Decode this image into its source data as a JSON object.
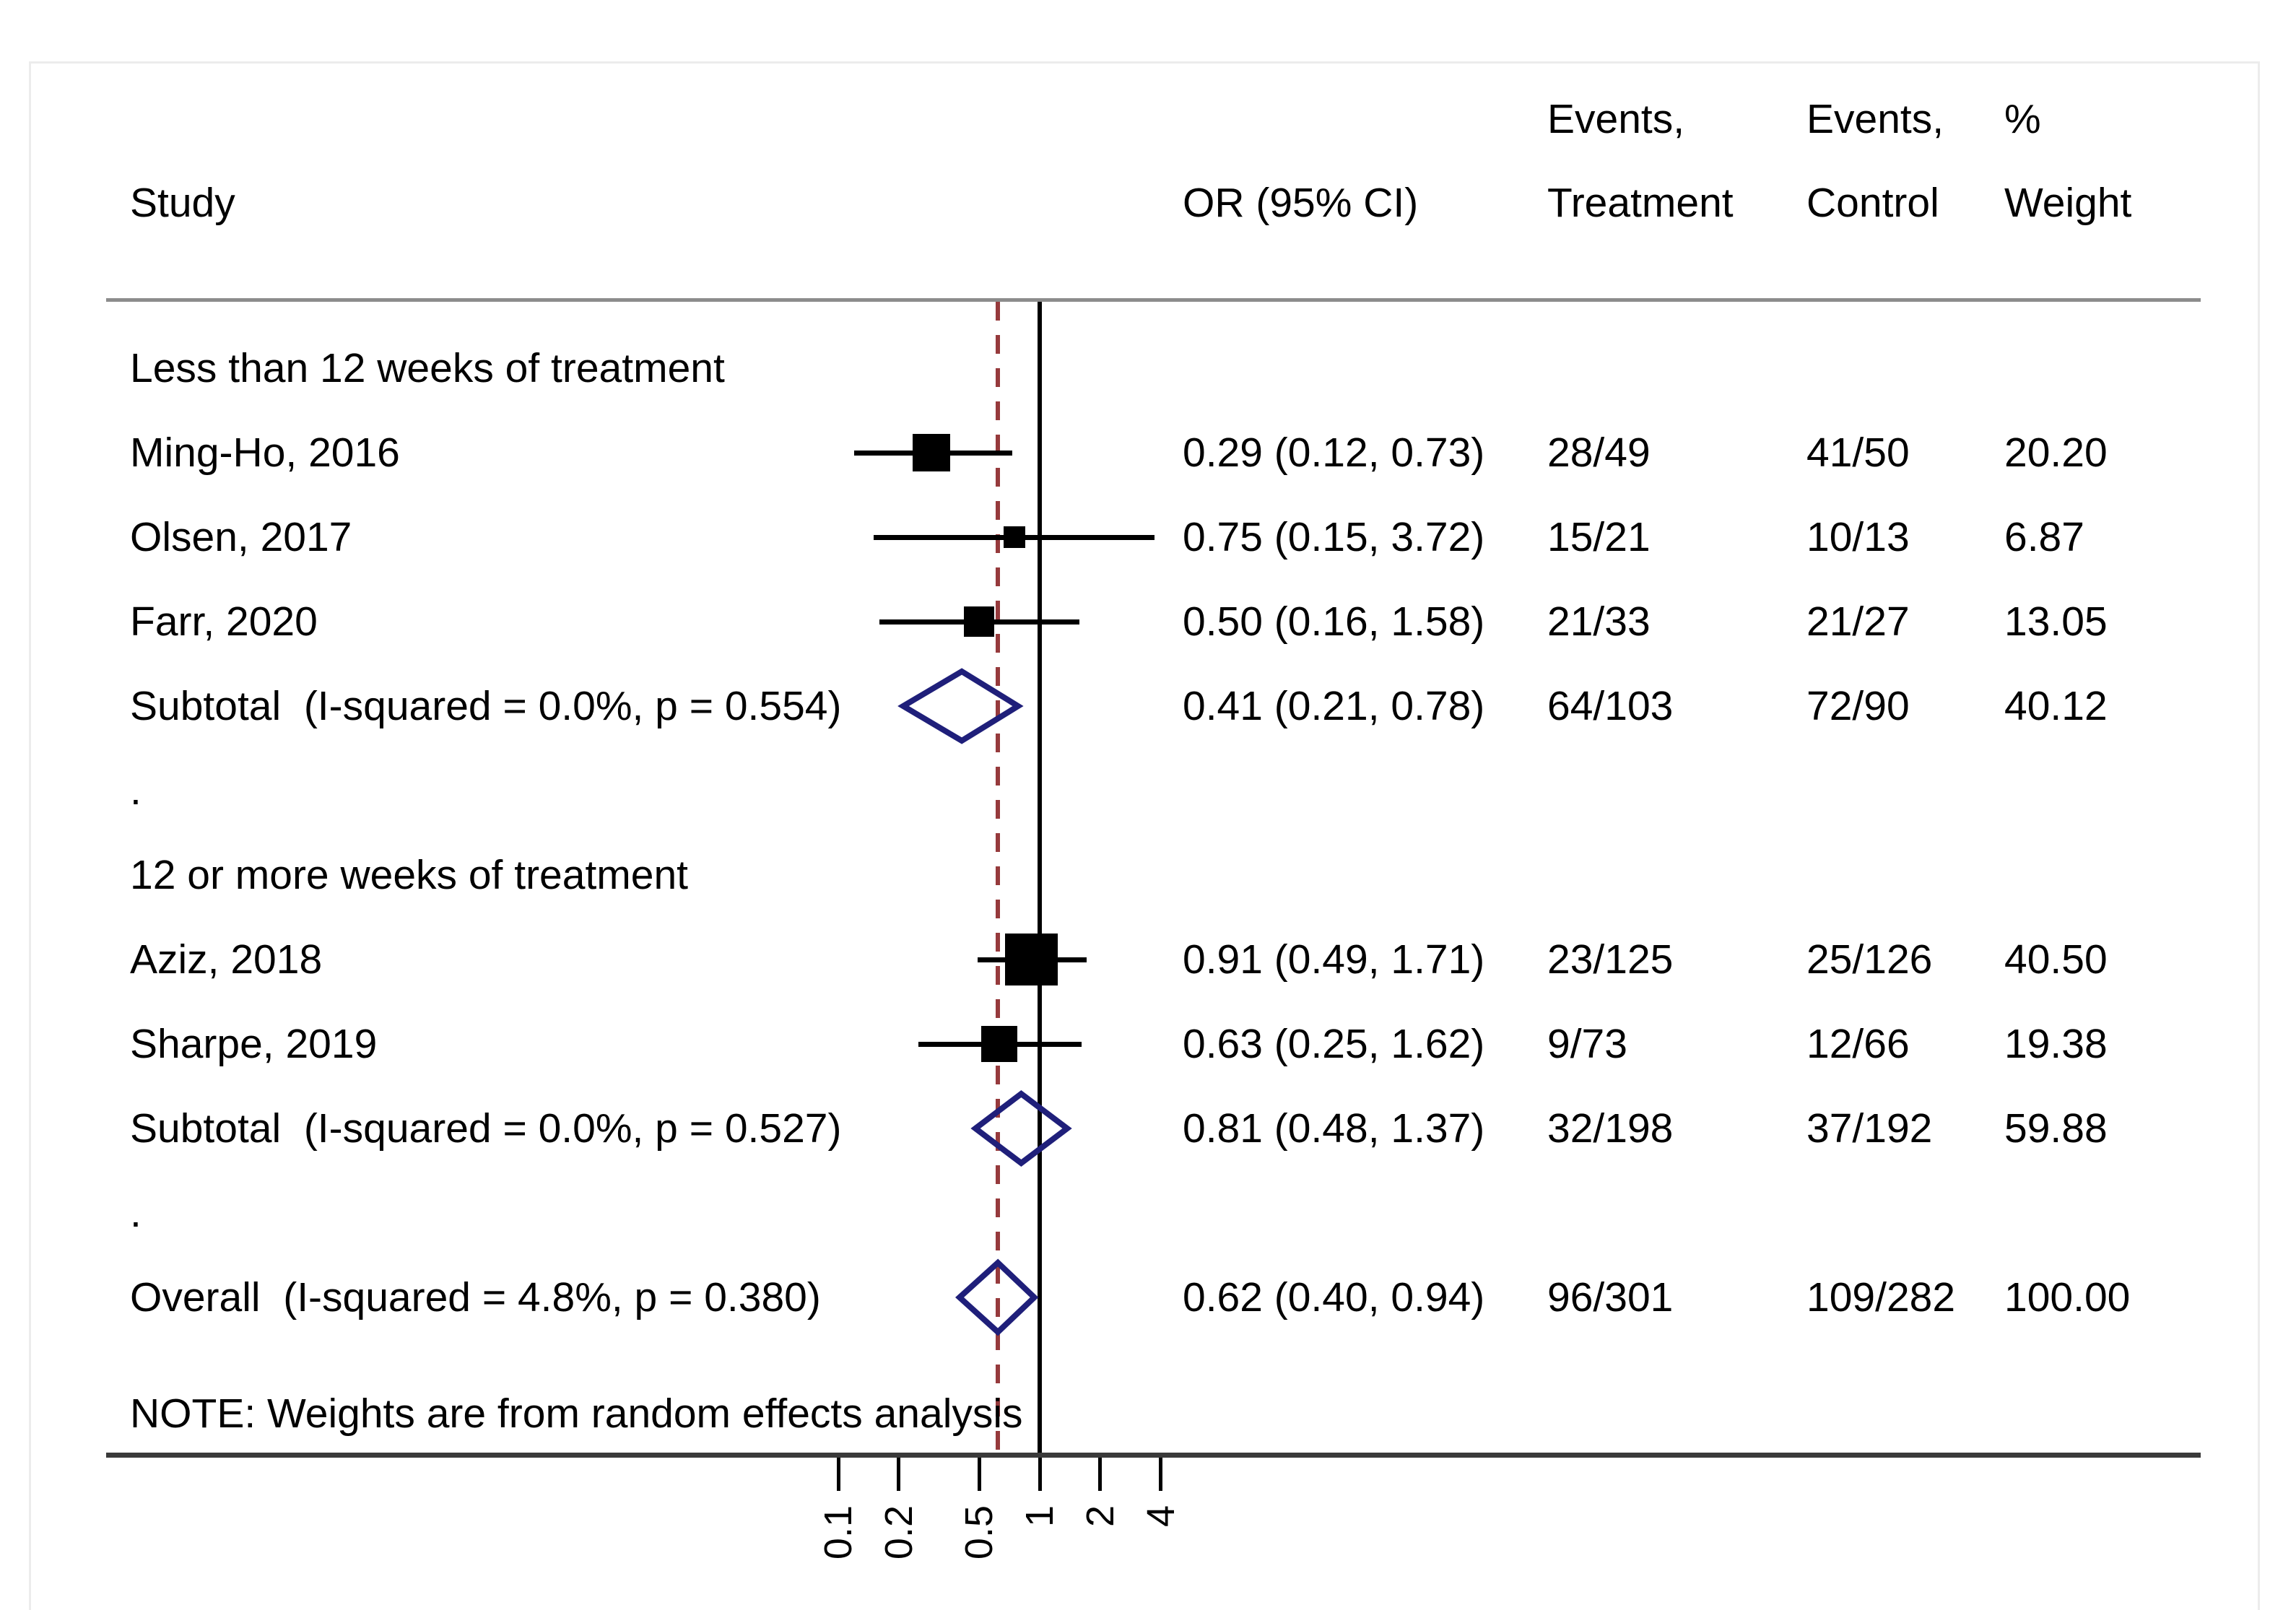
{
  "colors": {
    "marker": "#000000",
    "diamond_stroke": "#1f1f7a",
    "null_line": "#000000",
    "overall_dashed_line": "#963a3c",
    "header_rule": "#8c8c8c",
    "axis_rule": "#3a3a3a",
    "frame_border": "#ececec"
  },
  "chart_data": {
    "type": "forest",
    "x_scale": "log10",
    "effect_measure": "OR",
    "header": {
      "study": "Study",
      "or": "OR (95% CI)",
      "events_treatment": [
        "Events,",
        "Treatment"
      ],
      "events_control": [
        "Events,",
        "Control"
      ],
      "weight": [
        "%",
        "Weight"
      ]
    },
    "note": "NOTE: Weights are from random effects analysis",
    "null_value": 1,
    "overall_line_value": 0.62,
    "x_ticks": [
      {
        "v": 0.1,
        "label": "0.1"
      },
      {
        "v": 0.2,
        "label": "0.2"
      },
      {
        "v": 0.5,
        "label": "0.5"
      },
      {
        "v": 1,
        "label": "1"
      },
      {
        "v": 2,
        "label": "2"
      },
      {
        "v": 4,
        "label": "4"
      }
    ],
    "rows": [
      {
        "kind": "section",
        "label": "Less than 12 weeks of treatment"
      },
      {
        "kind": "study",
        "label": "Ming-Ho, 2016",
        "or": 0.29,
        "lo": 0.12,
        "hi": 0.73,
        "or_text": "0.29 (0.12, 0.73)",
        "treatment": "28/49",
        "control": "41/50",
        "weight": 20.2,
        "weight_text": "20.20"
      },
      {
        "kind": "study",
        "label": "Olsen, 2017",
        "or": 0.75,
        "lo": 0.15,
        "hi": 3.72,
        "or_text": "0.75 (0.15, 3.72)",
        "treatment": "15/21",
        "control": "10/13",
        "weight": 6.87,
        "weight_text": "6.87"
      },
      {
        "kind": "study",
        "label": "Farr, 2020",
        "or": 0.5,
        "lo": 0.16,
        "hi": 1.58,
        "or_text": "0.50 (0.16, 1.58)",
        "treatment": "21/33",
        "control": "21/27",
        "weight": 13.05,
        "weight_text": "13.05"
      },
      {
        "kind": "pooled",
        "label": "Subtotal  (I-squared = 0.0%, p = 0.554)",
        "or": 0.41,
        "lo": 0.21,
        "hi": 0.78,
        "or_text": "0.41 (0.21, 0.78)",
        "treatment": "64/103",
        "control": "72/90",
        "weight": 40.12,
        "weight_text": "40.12"
      },
      {
        "kind": "gap",
        "label": "."
      },
      {
        "kind": "section",
        "label": "12 or more weeks of treatment"
      },
      {
        "kind": "study",
        "label": "Aziz, 2018",
        "or": 0.91,
        "lo": 0.49,
        "hi": 1.71,
        "or_text": "0.91 (0.49, 1.71)",
        "treatment": "23/125",
        "control": "25/126",
        "weight": 40.5,
        "weight_text": "40.50"
      },
      {
        "kind": "study",
        "label": "Sharpe, 2019",
        "or": 0.63,
        "lo": 0.25,
        "hi": 1.62,
        "or_text": "0.63 (0.25, 1.62)",
        "treatment": "9/73",
        "control": "12/66",
        "weight": 19.38,
        "weight_text": "19.38"
      },
      {
        "kind": "pooled",
        "label": "Subtotal  (I-squared = 0.0%, p = 0.527)",
        "or": 0.81,
        "lo": 0.48,
        "hi": 1.37,
        "or_text": "0.81 (0.48, 1.37)",
        "treatment": "32/198",
        "control": "37/192",
        "weight": 59.88,
        "weight_text": "59.88"
      },
      {
        "kind": "gap",
        "label": "."
      },
      {
        "kind": "overall",
        "label": "Overall  (I-squared = 4.8%, p = 0.380)",
        "or": 0.62,
        "lo": 0.4,
        "hi": 0.94,
        "or_text": "0.62 (0.40, 0.94)",
        "treatment": "96/301",
        "control": "109/282",
        "weight": 100.0,
        "weight_text": "100.00"
      }
    ]
  }
}
